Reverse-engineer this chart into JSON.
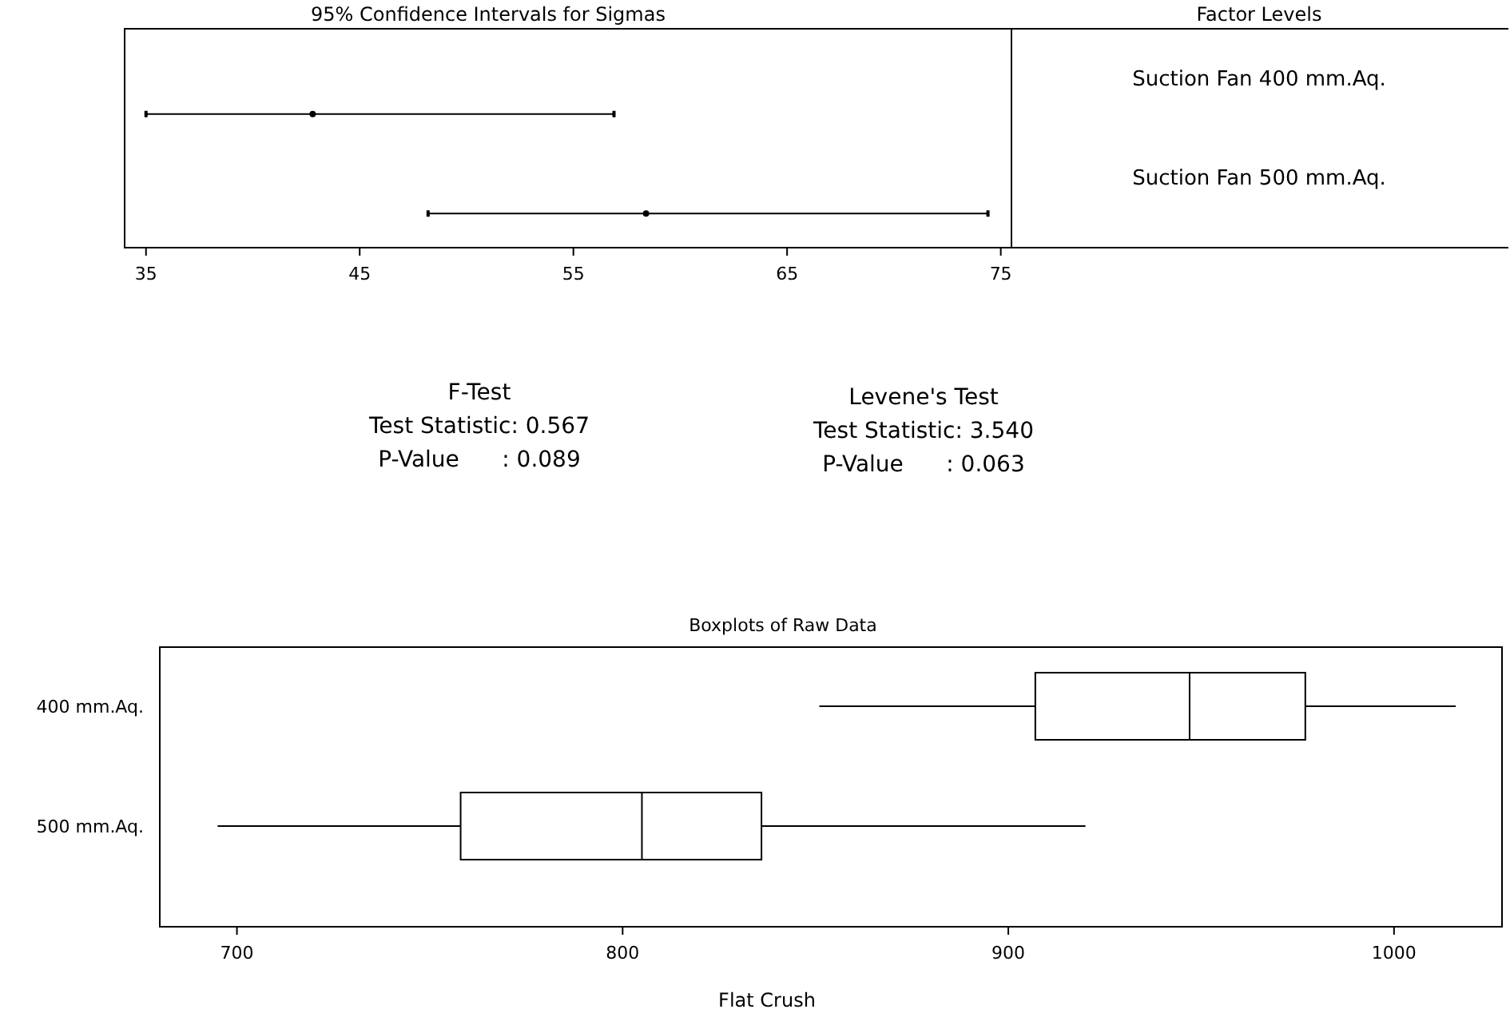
{
  "chart_data": [
    {
      "type": "scatter",
      "orientation": "horizontal",
      "title": "95% Confidence Intervals for Sigmas",
      "legend_title": "Factor Levels",
      "categories": [
        "Suction Fan 400 mm.Aq.",
        "Suction Fan 500 mm.Aq."
      ],
      "values": [
        42.8,
        58.4
      ],
      "errors": [
        [
          35.0,
          56.9
        ],
        [
          48.2,
          74.4
        ]
      ],
      "color": "#000000",
      "marker": "circle",
      "xlim": [
        34,
        75.5
      ],
      "xticks": [
        35,
        45,
        55,
        65,
        75
      ],
      "grid": false
    },
    {
      "type": "other",
      "annotations": [
        "F-Test",
        "Test Statistic: 0.567",
        "P-Value      : 0.089",
        "Levene's Test",
        "Test Statistic: 3.540",
        "P-Value      : 0.063"
      ]
    },
    {
      "type": "box",
      "orientation": "horizontal",
      "title": "Boxplots of Raw Data",
      "xlabel": "Flat Crush",
      "categories": [
        "400 mm.Aq.",
        "500 mm.Aq."
      ],
      "boxes": [
        {
          "low": 851,
          "q1": 907,
          "median": 947,
          "q3": 977,
          "high": 1016
        },
        {
          "low": 695,
          "q1": 758,
          "median": 805,
          "q3": 836,
          "high": 920
        }
      ],
      "xlim": [
        680,
        1028
      ],
      "xticks": [
        700,
        800,
        900,
        1000
      ]
    }
  ]
}
